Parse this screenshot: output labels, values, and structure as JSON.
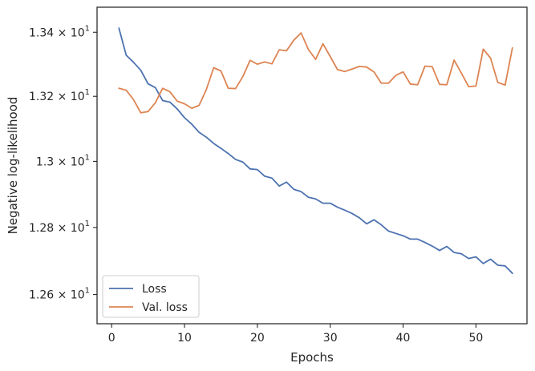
{
  "chart_data": {
    "type": "line",
    "xlabel": "Epochs",
    "ylabel": "Negative log-likelihood",
    "yscale": "log",
    "xlim": [
      -2,
      57
    ],
    "ylim": [
      12.514,
      13.479
    ],
    "x_ticks": [
      0,
      10,
      20,
      30,
      40,
      50
    ],
    "x_tick_labels": [
      "0",
      "10",
      "20",
      "30",
      "40",
      "50"
    ],
    "y_ticks": [
      12.6,
      12.8,
      13.0,
      13.2,
      13.4
    ],
    "y_tick_labels": [
      {
        "base": "1.26",
        "exp": "1"
      },
      {
        "base": "1.28",
        "exp": "1"
      },
      {
        "base": "1.3",
        "exp": "1"
      },
      {
        "base": "1.32",
        "exp": "1"
      },
      {
        "base": "1.34",
        "exp": "1"
      }
    ],
    "grid": false,
    "legend_position": "lower-left",
    "x": [
      1,
      2,
      3,
      4,
      5,
      6,
      7,
      8,
      9,
      10,
      11,
      12,
      13,
      14,
      15,
      16,
      17,
      18,
      19,
      20,
      21,
      22,
      23,
      24,
      25,
      26,
      27,
      28,
      29,
      30,
      31,
      32,
      33,
      34,
      35,
      36,
      37,
      38,
      39,
      40,
      41,
      42,
      43,
      44,
      45,
      46,
      47,
      48,
      49,
      50,
      51,
      52,
      53,
      54,
      55
    ],
    "series": [
      {
        "name": "Loss",
        "color": "#4c72b0",
        "values": [
          13.413,
          13.328,
          13.306,
          13.281,
          13.239,
          13.227,
          13.187,
          13.182,
          13.161,
          13.134,
          13.114,
          13.089,
          13.074,
          13.055,
          13.04,
          13.024,
          13.006,
          12.998,
          12.977,
          12.975,
          12.955,
          12.949,
          12.925,
          12.937,
          12.915,
          12.908,
          12.891,
          12.886,
          12.873,
          12.873,
          12.861,
          12.852,
          12.842,
          12.829,
          12.811,
          12.823,
          12.808,
          12.789,
          12.782,
          12.775,
          12.765,
          12.765,
          12.755,
          12.744,
          12.731,
          12.743,
          12.725,
          12.721,
          12.707,
          12.712,
          12.692,
          12.705,
          12.687,
          12.685,
          12.663
        ]
      },
      {
        "name": "Val. loss",
        "color": "#dd8452",
        "values": [
          13.225,
          13.219,
          13.19,
          13.149,
          13.153,
          13.18,
          13.225,
          13.214,
          13.185,
          13.177,
          13.163,
          13.172,
          13.221,
          13.289,
          13.279,
          13.225,
          13.224,
          13.261,
          13.312,
          13.3,
          13.307,
          13.301,
          13.345,
          13.342,
          13.375,
          13.398,
          13.346,
          13.315,
          13.364,
          13.324,
          13.283,
          13.277,
          13.285,
          13.293,
          13.291,
          13.276,
          13.241,
          13.241,
          13.265,
          13.276,
          13.238,
          13.236,
          13.294,
          13.292,
          13.237,
          13.236,
          13.313,
          13.272,
          13.23,
          13.232,
          13.347,
          13.319,
          13.243,
          13.235,
          13.351
        ]
      }
    ]
  }
}
